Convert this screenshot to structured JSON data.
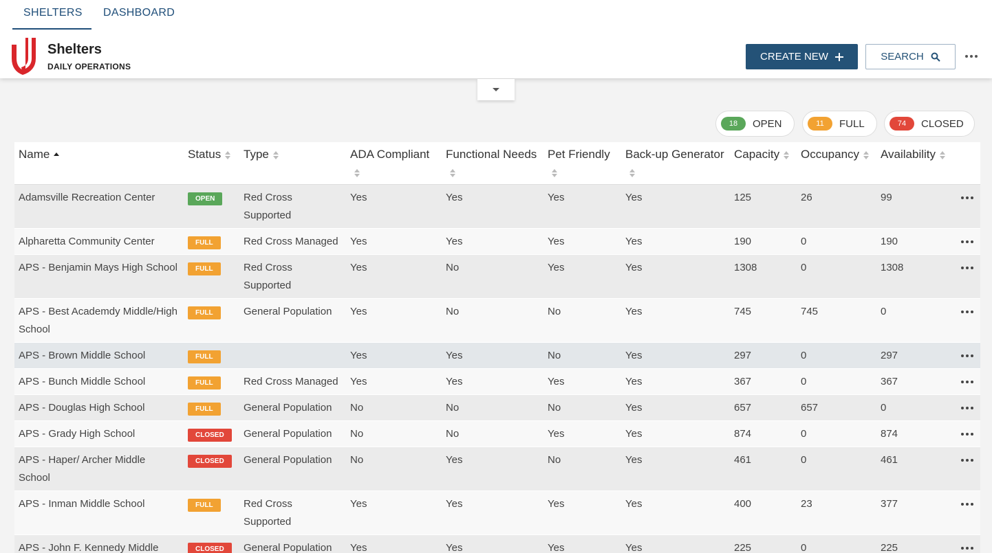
{
  "tabs": [
    "SHELTERS",
    "DASHBOARD"
  ],
  "header": {
    "title": "Shelters",
    "subtitle": "DAILY OPERATIONS"
  },
  "actions": {
    "create": "CREATE NEW",
    "search": "SEARCH"
  },
  "summary": [
    {
      "count": 18,
      "label": "OPEN",
      "color": "#5aa75a"
    },
    {
      "count": 11,
      "label": "FULL",
      "color": "#f2a232"
    },
    {
      "count": 74,
      "label": "CLOSED",
      "color": "#e2473a"
    }
  ],
  "table": {
    "columns": [
      "Name",
      "Status",
      "Type",
      "ADA Compliant",
      "Functional Needs",
      "Pet Friendly",
      "Back-up Generator",
      "Capacity",
      "Occupancy",
      "Availability"
    ],
    "rows": [
      [
        "Adamsville Recreation Center",
        "OPEN",
        "Red Cross Supported",
        "Yes",
        "Yes",
        "Yes",
        "Yes",
        125,
        26,
        99
      ],
      [
        "Alpharetta Community Center",
        "FULL",
        "Red Cross Managed",
        "Yes",
        "Yes",
        "Yes",
        "Yes",
        190,
        0,
        190
      ],
      [
        "APS - Benjamin Mays High School",
        "FULL",
        "Red Cross Supported",
        "Yes",
        "No",
        "Yes",
        "Yes",
        1308,
        0,
        1308
      ],
      [
        "APS - Best Academdy Middle/High School",
        "FULL",
        "General Population",
        "Yes",
        "No",
        "No",
        "Yes",
        745,
        745,
        0
      ],
      [
        "APS - Brown Middle School",
        "FULL",
        null,
        "Yes",
        "Yes",
        "No",
        "Yes",
        297,
        0,
        297
      ],
      [
        "APS - Bunch Middle School",
        "FULL",
        "Red Cross Managed",
        "Yes",
        "Yes",
        "Yes",
        "Yes",
        367,
        0,
        367
      ],
      [
        "APS - Douglas High School",
        "FULL",
        "General Population",
        "No",
        "No",
        "No",
        "Yes",
        657,
        657,
        0
      ],
      [
        "APS - Grady High School",
        "CLOSED",
        "General Population",
        "No",
        "No",
        "Yes",
        "Yes",
        874,
        0,
        874
      ],
      [
        "APS - Haper/ Archer Middle School",
        "CLOSED",
        "General Population",
        "No",
        "Yes",
        "No",
        "Yes",
        461,
        0,
        461
      ],
      [
        "APS - Inman Middle School",
        "FULL",
        "Red Cross Supported",
        "Yes",
        "Yes",
        "Yes",
        "Yes",
        400,
        23,
        377
      ],
      [
        "APS - John F. Kennedy Middle",
        "CLOSED",
        "General Population",
        "Yes",
        "Yes",
        "Yes",
        "Yes",
        225,
        0,
        225
      ]
    ]
  }
}
